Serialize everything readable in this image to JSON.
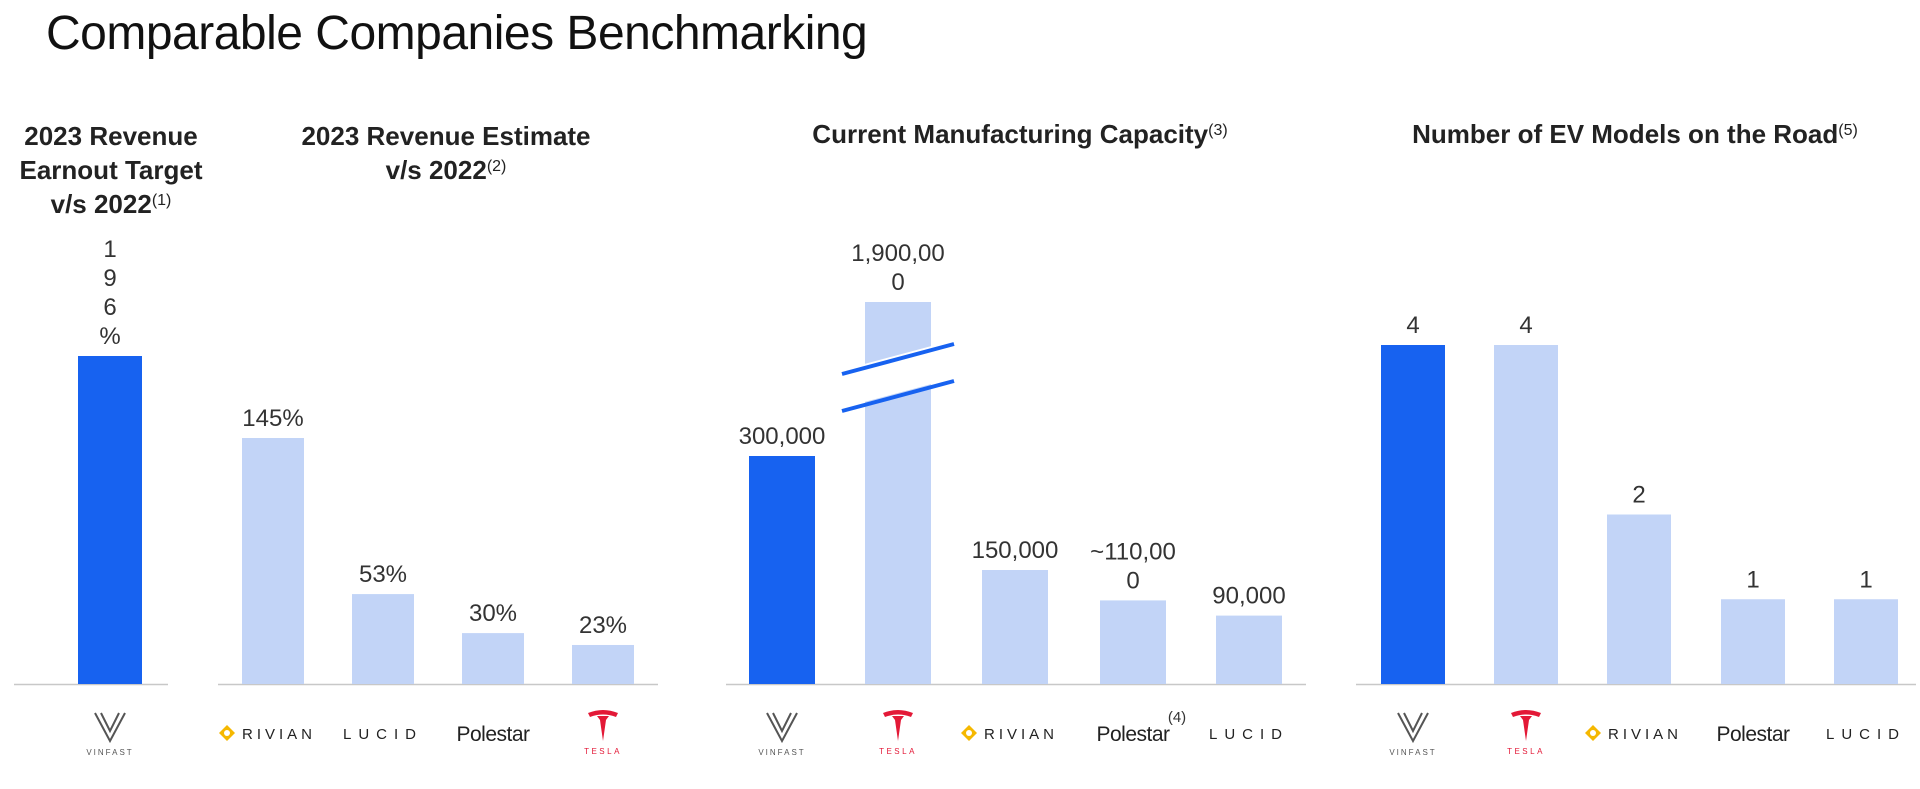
{
  "page": {
    "title": "Comparable Companies Benchmarking"
  },
  "colors": {
    "highlight": "#1762F0",
    "peer": "#C2D4F7",
    "axis": "#C8C8C8",
    "break_line": "#1762F0",
    "tesla_red": "#E31937",
    "rivian_yellow": "#F5B800"
  },
  "panels": [
    {
      "title_lines": [
        "2023 Revenue",
        "Earnout Target",
        "v/s 2022"
      ],
      "footnote": "(1)"
    },
    {
      "title_lines": [
        "2023 Revenue Estimate",
        "v/s 2022"
      ],
      "footnote": "(2)"
    },
    {
      "title_lines": [
        "Current Manufacturing Capacity"
      ],
      "footnote": "(3)"
    },
    {
      "title_lines": [
        "Number of EV Models on the Road"
      ],
      "footnote": "(5)"
    }
  ],
  "chart_data": [
    {
      "type": "bar",
      "title": "2023 Revenue Earnout Target v/s 2022",
      "categories": [
        "VinFast"
      ],
      "values": [
        196
      ],
      "labels": [
        "1\n9\n6\n%"
      ],
      "unit": "%",
      "highlight": [
        "VinFast"
      ],
      "footnote": "(1)"
    },
    {
      "type": "bar",
      "title": "2023 Revenue Estimate v/s 2022",
      "categories": [
        "Rivian",
        "Lucid",
        "Polestar",
        "Tesla"
      ],
      "values": [
        145,
        53,
        30,
        23
      ],
      "labels": [
        "145%",
        "53%",
        "30%",
        "23%"
      ],
      "unit": "%",
      "footnote": "(2)"
    },
    {
      "type": "bar",
      "title": "Current Manufacturing Capacity",
      "categories": [
        "VinFast",
        "Tesla",
        "Rivian",
        "Polestar",
        "Lucid"
      ],
      "values": [
        300000,
        1900000,
        150000,
        110000,
        90000
      ],
      "labels": [
        "300,000",
        "1,900,00\n0",
        "150,000",
        "~110,00\n0",
        "90,000"
      ],
      "highlight": [
        "VinFast"
      ],
      "axis_break": "Tesla",
      "category_footnotes": {
        "Polestar": "(4)"
      },
      "footnote": "(3)"
    },
    {
      "type": "bar",
      "title": "Number of EV Models on the Road",
      "categories": [
        "VinFast",
        "Tesla",
        "Rivian",
        "Polestar",
        "Lucid"
      ],
      "values": [
        4,
        4,
        2,
        1,
        1
      ],
      "labels": [
        "4",
        "4",
        "2",
        "1",
        "1"
      ],
      "highlight": [
        "VinFast"
      ],
      "ylim": [
        0,
        4
      ],
      "footnote": "(5)"
    }
  ],
  "logos": {
    "vinfast": "VINFAST",
    "tesla": "TESLA",
    "rivian": "RIVIAN",
    "lucid": "LUCID",
    "polestar": "Polestar"
  }
}
